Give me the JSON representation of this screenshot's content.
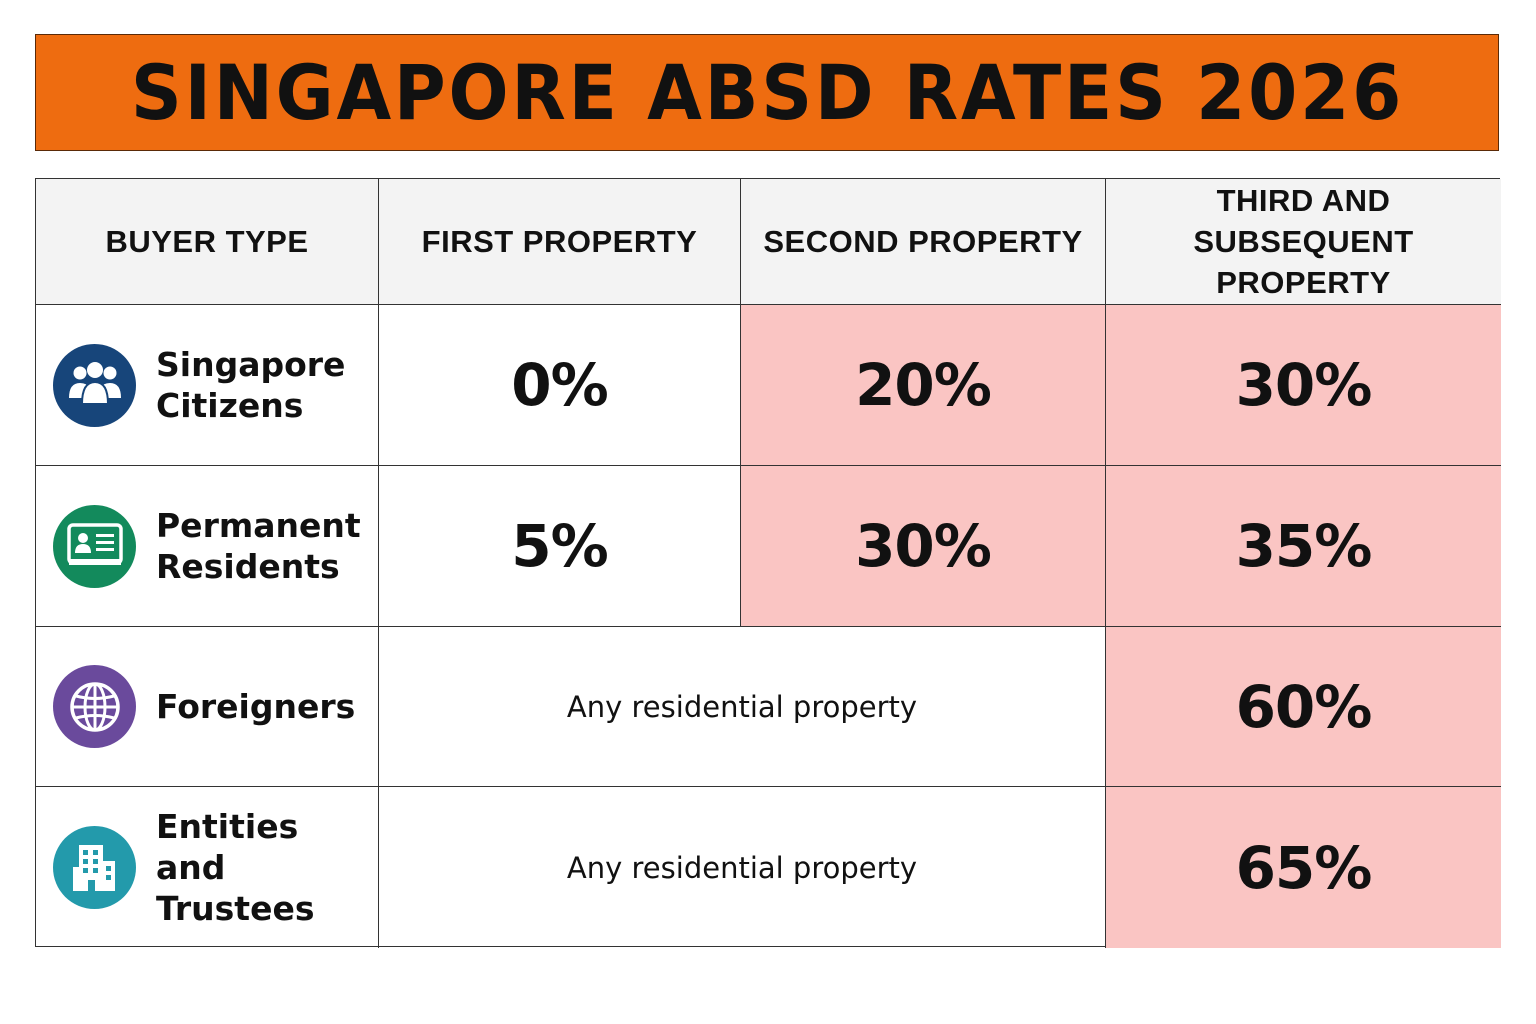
{
  "title": "SINGAPORE ABSD RATES 2026",
  "colors": {
    "banner": "#ee6c10",
    "header_bg": "#f3f3f3",
    "highlight": "#fac5c3",
    "citizens_icon": "#17457a",
    "pr_icon": "#138a5c",
    "foreigners_icon": "#6a4a9c",
    "entities_icon": "#239aab"
  },
  "table": {
    "headers": {
      "buyer_type": "BUYER TYPE",
      "first": "FIRST PROPERTY",
      "second": "SECOND PROPERTY",
      "third_line1": "THIRD AND",
      "third_line2": "SUBSEQUENT PROPERTY"
    },
    "rows": [
      {
        "icon": "people-group-icon",
        "label_line1": "Singapore",
        "label_line2": "Citizens",
        "first": "0%",
        "second": "20%",
        "third": "30%"
      },
      {
        "icon": "id-card-icon",
        "label_line1": "Permanent",
        "label_line2": "Residents",
        "first": "5%",
        "second": "30%",
        "third": "35%"
      },
      {
        "icon": "globe-icon",
        "label_line1": "Foreigners",
        "note": "Any residential property",
        "third": "60%"
      },
      {
        "icon": "building-icon",
        "label_line1": "Entities and",
        "label_line2": "Trustees",
        "note": "Any residential property",
        "third": "65%"
      }
    ]
  }
}
